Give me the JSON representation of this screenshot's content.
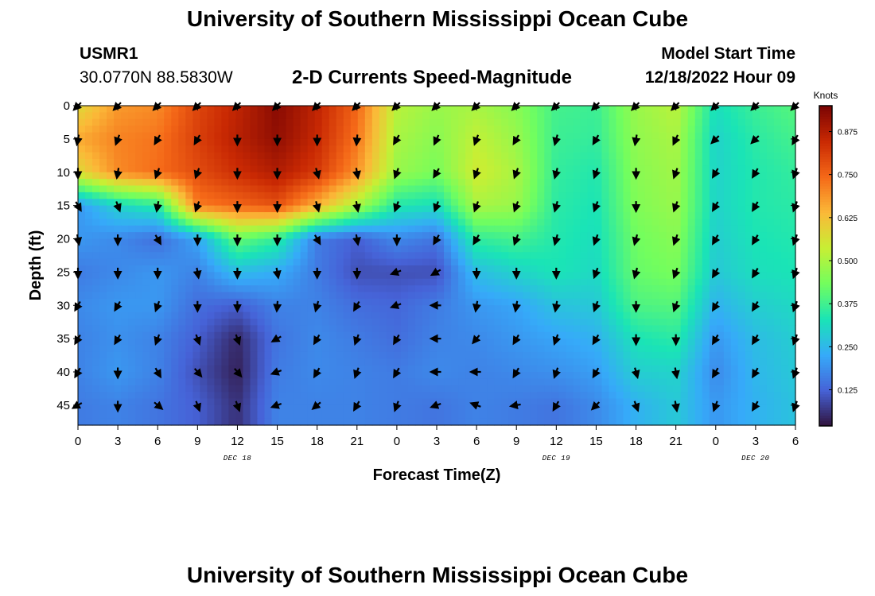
{
  "header": {
    "title": "University of Southern Mississippi Ocean Cube",
    "station_id": "USMR1",
    "coordinates": "30.0770N  88.5830W",
    "subtitle": "2-D Currents Speed-Magnitude",
    "model_start_label": "Model Start Time",
    "model_start_value": "12/18/2022 Hour 09"
  },
  "footer": {
    "title": "University of Southern Mississippi Ocean Cube"
  },
  "chart_data": {
    "type": "heatmap",
    "title": "2-D Currents Speed-Magnitude",
    "xlabel": "Forecast Time(Z)",
    "ylabel": "Depth (ft)",
    "x_tick_labels": [
      "0",
      "3",
      "6",
      "9",
      "12",
      "15",
      "18",
      "21",
      "0",
      "3",
      "6",
      "9",
      "12",
      "15",
      "18",
      "21",
      "0",
      "3",
      "6"
    ],
    "x_range_hours": [
      0,
      54
    ],
    "date_labels": [
      {
        "label": "DEC 18",
        "hour": 12
      },
      {
        "label": "DEC 19",
        "hour": 36
      },
      {
        "label": "DEC 20",
        "hour": 51
      }
    ],
    "y_tick_labels": [
      "0",
      "5",
      "10",
      "15",
      "20",
      "25",
      "30",
      "35",
      "40",
      "45"
    ],
    "y_range_ft": [
      0,
      48
    ],
    "y_inverted": true,
    "colorbar": {
      "label": "Knots",
      "tick_labels": [
        "0.125",
        "0.250",
        "0.375",
        "0.500",
        "0.625",
        "0.750",
        "0.875"
      ],
      "range": [
        0.02,
        0.95
      ],
      "colormap": [
        "#30123b",
        "#4662d7",
        "#36aaf9",
        "#1ae4b6",
        "#72fe5e",
        "#c7ef34",
        "#fbb938",
        "#f56918",
        "#c92903",
        "#7a0403"
      ]
    },
    "times_hours": [
      0,
      3,
      6,
      9,
      12,
      15,
      18,
      21,
      24,
      27,
      30,
      33,
      36,
      39,
      42,
      45,
      48,
      51,
      54
    ],
    "depths_ft": [
      0,
      5,
      10,
      15,
      20,
      25,
      30,
      35,
      40,
      45
    ],
    "speed_knots": [
      [
        0.58,
        0.68,
        0.7,
        0.8,
        0.86,
        0.93,
        0.86,
        0.75,
        0.52,
        0.48,
        0.5,
        0.46,
        0.38,
        0.37,
        0.48,
        0.52,
        0.32,
        0.37,
        0.4
      ],
      [
        0.66,
        0.71,
        0.73,
        0.81,
        0.87,
        0.92,
        0.85,
        0.73,
        0.5,
        0.46,
        0.53,
        0.48,
        0.37,
        0.36,
        0.47,
        0.5,
        0.3,
        0.35,
        0.38
      ],
      [
        0.58,
        0.7,
        0.74,
        0.79,
        0.84,
        0.88,
        0.82,
        0.69,
        0.48,
        0.44,
        0.55,
        0.5,
        0.36,
        0.34,
        0.46,
        0.49,
        0.3,
        0.34,
        0.36
      ],
      [
        0.2,
        0.3,
        0.35,
        0.72,
        0.75,
        0.78,
        0.65,
        0.5,
        0.34,
        0.32,
        0.5,
        0.48,
        0.35,
        0.33,
        0.45,
        0.48,
        0.3,
        0.34,
        0.35
      ],
      [
        0.2,
        0.18,
        0.14,
        0.22,
        0.42,
        0.36,
        0.16,
        0.12,
        0.18,
        0.15,
        0.36,
        0.38,
        0.34,
        0.32,
        0.43,
        0.46,
        0.29,
        0.33,
        0.34
      ],
      [
        0.16,
        0.18,
        0.2,
        0.17,
        0.26,
        0.23,
        0.16,
        0.1,
        0.1,
        0.1,
        0.26,
        0.3,
        0.33,
        0.31,
        0.42,
        0.44,
        0.28,
        0.32,
        0.33
      ],
      [
        0.18,
        0.2,
        0.2,
        0.14,
        0.12,
        0.17,
        0.17,
        0.14,
        0.13,
        0.16,
        0.2,
        0.22,
        0.27,
        0.28,
        0.39,
        0.4,
        0.24,
        0.29,
        0.31
      ],
      [
        0.17,
        0.19,
        0.17,
        0.12,
        0.05,
        0.15,
        0.18,
        0.16,
        0.14,
        0.17,
        0.18,
        0.2,
        0.22,
        0.24,
        0.33,
        0.35,
        0.2,
        0.26,
        0.29
      ],
      [
        0.17,
        0.2,
        0.17,
        0.1,
        0.04,
        0.16,
        0.18,
        0.17,
        0.16,
        0.18,
        0.17,
        0.18,
        0.19,
        0.21,
        0.29,
        0.3,
        0.18,
        0.25,
        0.28
      ],
      [
        0.16,
        0.17,
        0.15,
        0.12,
        0.06,
        0.17,
        0.17,
        0.17,
        0.16,
        0.15,
        0.17,
        0.16,
        0.15,
        0.18,
        0.24,
        0.28,
        0.2,
        0.24,
        0.27
      ]
    ],
    "direction_deg": [
      [
        225,
        225,
        225,
        225,
        225,
        225,
        225,
        225,
        225,
        225,
        225,
        225,
        225,
        225,
        225,
        225,
        225,
        225,
        225
      ],
      [
        260,
        250,
        240,
        240,
        270,
        270,
        270,
        265,
        240,
        245,
        250,
        240,
        255,
        240,
        260,
        245,
        225,
        225,
        240
      ],
      [
        270,
        260,
        250,
        250,
        270,
        270,
        285,
        280,
        250,
        240,
        250,
        250,
        255,
        250,
        270,
        250,
        240,
        240,
        250
      ],
      [
        300,
        290,
        260,
        250,
        270,
        270,
        285,
        280,
        250,
        250,
        250,
        250,
        255,
        250,
        270,
        250,
        240,
        240,
        250
      ],
      [
        280,
        270,
        300,
        270,
        270,
        270,
        300,
        280,
        270,
        240,
        240,
        250,
        255,
        250,
        255,
        250,
        240,
        240,
        250
      ],
      [
        270,
        270,
        270,
        280,
        270,
        280,
        270,
        270,
        200,
        210,
        270,
        270,
        270,
        250,
        255,
        250,
        240,
        240,
        250
      ],
      [
        240,
        240,
        250,
        270,
        270,
        265,
        255,
        240,
        200,
        180,
        260,
        260,
        260,
        250,
        270,
        250,
        240,
        240,
        250
      ],
      [
        240,
        240,
        250,
        290,
        290,
        210,
        240,
        250,
        240,
        180,
        230,
        240,
        250,
        240,
        270,
        270,
        240,
        240,
        250
      ],
      [
        240,
        270,
        300,
        310,
        310,
        200,
        240,
        250,
        240,
        180,
        180,
        240,
        250,
        240,
        285,
        280,
        240,
        240,
        250
      ],
      [
        210,
        270,
        320,
        290,
        290,
        200,
        220,
        240,
        250,
        200,
        160,
        190,
        240,
        225,
        290,
        280,
        250,
        240,
        250
      ]
    ]
  }
}
